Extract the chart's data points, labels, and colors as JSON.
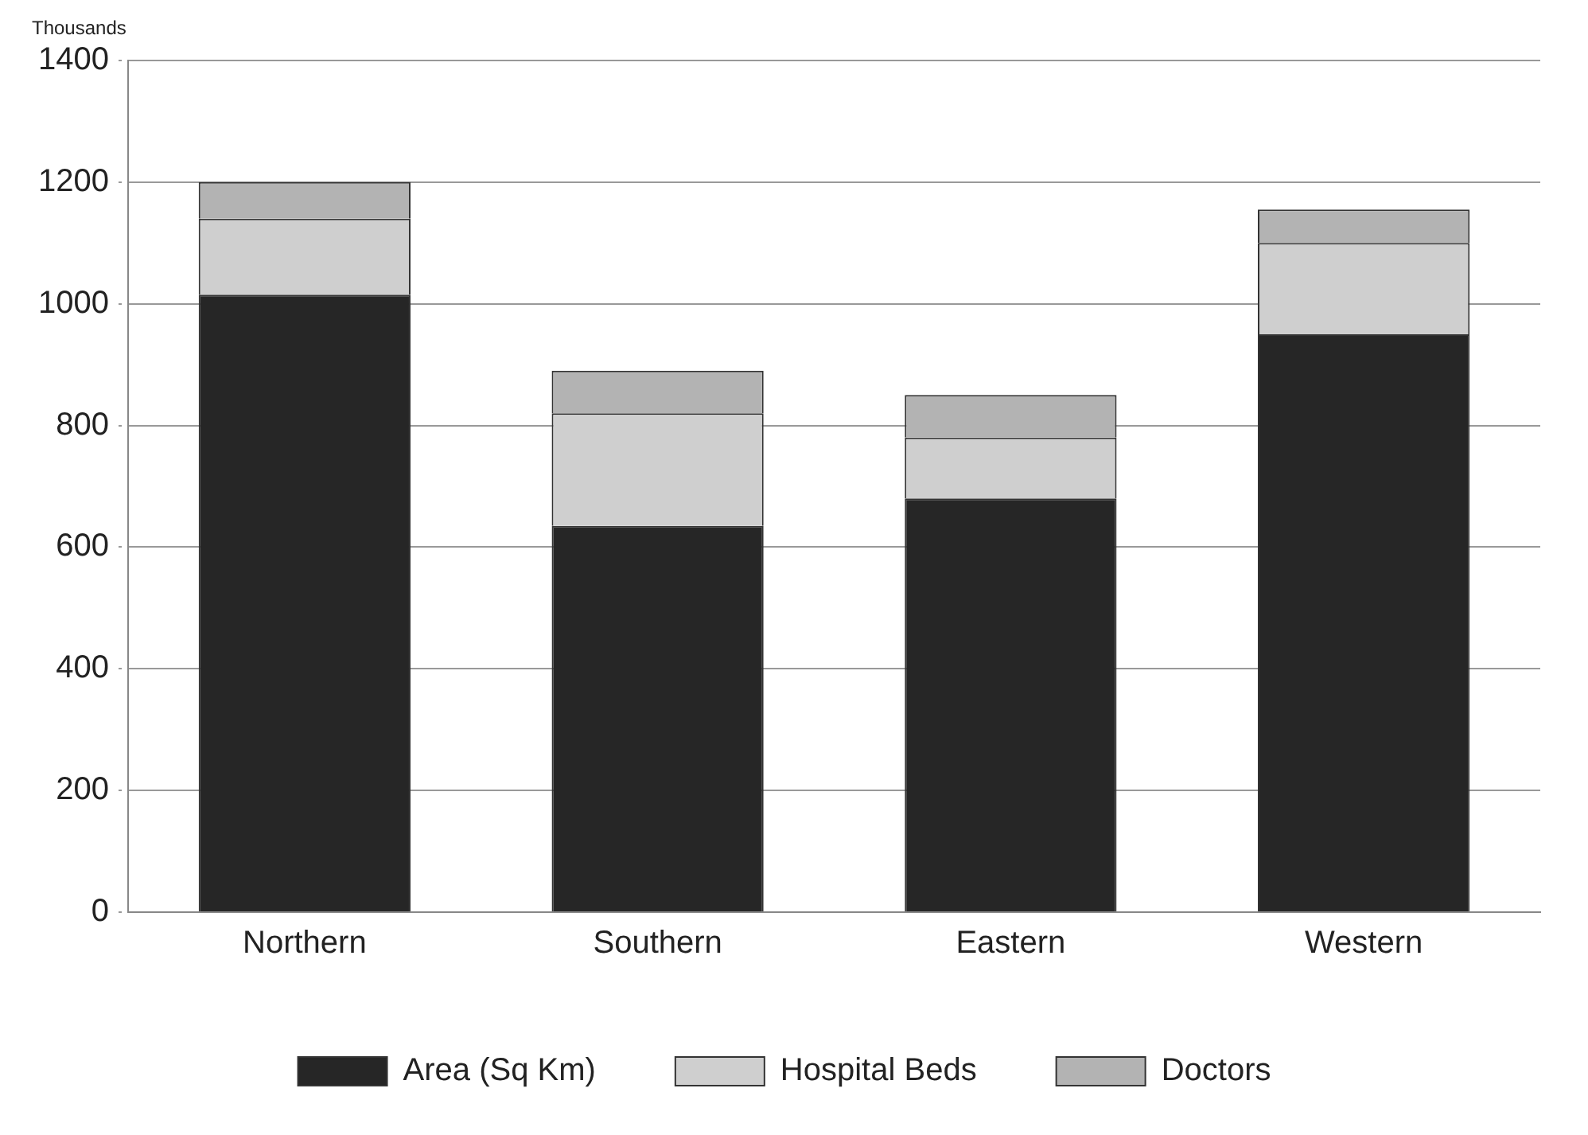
{
  "chart_data": {
    "type": "bar",
    "ylabel": "Thousands",
    "categories": [
      "Northern",
      "Southern",
      "Eastern",
      "Western"
    ],
    "stacked": true,
    "series": [
      {
        "name": "Area (Sq Km)",
        "color": "#262626",
        "values": [
          1015,
          635,
          680,
          950
        ]
      },
      {
        "name": "Hospital Beds",
        "color": "#cfcfcf",
        "values": [
          125,
          185,
          100,
          150
        ]
      },
      {
        "name": "Doctors",
        "color": "#b3b3b3",
        "values": [
          60,
          70,
          70,
          55
        ]
      }
    ],
    "ylim": [
      0,
      1400
    ],
    "yticks": [
      0,
      200,
      400,
      600,
      800,
      1000,
      1200,
      1400
    ],
    "grid": "y",
    "legend": "bottom"
  }
}
